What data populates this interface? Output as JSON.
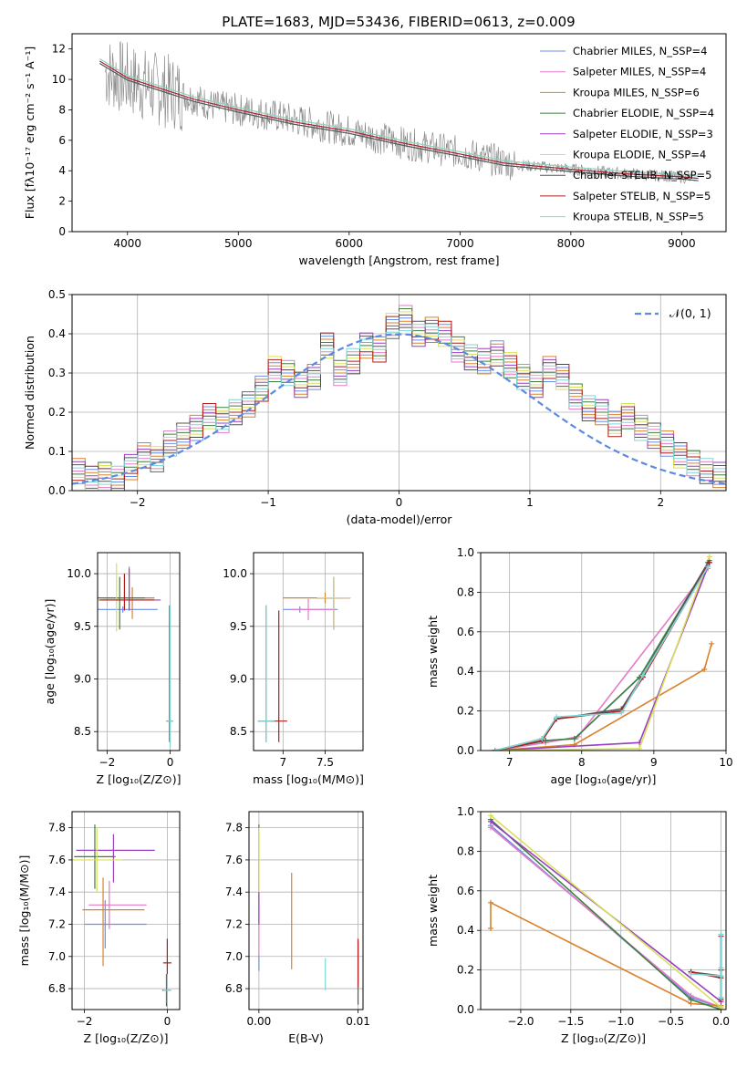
{
  "title": "PLATE=1683, MJD=53436, FIBERID=0613, z=0.009",
  "colors": [
    "#6b8ee8",
    "#e57ac8",
    "#d9822b",
    "#3f7f3f",
    "#9a3fc1",
    "#d8e05a",
    "#555555",
    "#b01c1c",
    "#7fd6d6"
  ],
  "chart_data": [
    {
      "id": "spectrum",
      "type": "line",
      "xlabel": "wavelength [Angstrom, rest frame]",
      "ylabel": "Flux [fλ10⁻¹⁷ erg cm⁻² s⁻¹ A⁻¹]",
      "xlim": [
        3500,
        9400
      ],
      "ylim": [
        0,
        13
      ],
      "xticks": [
        4000,
        5000,
        6000,
        7000,
        8000,
        9000
      ],
      "yticks": [
        0,
        2,
        4,
        6,
        8,
        10,
        12
      ],
      "grid": false,
      "legend_position": "top-right",
      "observed": {
        "color": "#808080",
        "x": [
          3800,
          4000,
          4200,
          4500,
          4800,
          5200,
          5600,
          6000,
          6500,
          7000,
          7500,
          8000,
          8500,
          9000,
          9100
        ],
        "y": [
          10.5,
          10.0,
          9.5,
          9.0,
          8.2,
          7.8,
          7.2,
          6.6,
          5.8,
          5.2,
          4.4,
          4.1,
          3.8,
          3.6,
          3.5
        ]
      },
      "model": {
        "x": [
          3750,
          4000,
          4300,
          4600,
          5000,
          5500,
          6000,
          6500,
          7000,
          7400,
          8000,
          8500,
          9000,
          9150
        ],
        "y": [
          11.2,
          10.1,
          9.4,
          8.7,
          8.0,
          7.2,
          6.6,
          5.8,
          5.1,
          4.5,
          4.1,
          3.8,
          3.6,
          3.5
        ]
      },
      "legend": [
        {
          "label": "Chabrier MILES, N_SSP=4",
          "color": "#6b8ee8"
        },
        {
          "label": "Salpeter MILES, N_SSP=4",
          "color": "#e57ac8"
        },
        {
          "label": "Kroupa MILES, N_SSP=6",
          "color": "#d9822b"
        },
        {
          "label": "Chabrier ELODIE, N_SSP=4",
          "color": "#3f7f3f"
        },
        {
          "label": "Salpeter ELODIE, N_SSP=3",
          "color": "#9a3fc1"
        },
        {
          "label": "Kroupa ELODIE, N_SSP=4",
          "color": "#d8e05a"
        },
        {
          "label": "Chabrier STELIB, N_SSP=5",
          "color": "#555555"
        },
        {
          "label": "Salpeter STELIB, N_SSP=5",
          "color": "#b01c1c"
        },
        {
          "label": "Kroupa STELIB, N_SSP=5",
          "color": "#7fd6d6"
        }
      ]
    },
    {
      "id": "residuals",
      "type": "line",
      "xlabel": "(data-model)/error",
      "ylabel": "Normed distribution",
      "xlim": [
        -2.5,
        2.5
      ],
      "ylim": [
        0,
        0.5
      ],
      "xticks": [
        -2,
        -1,
        0,
        1,
        2
      ],
      "yticks": [
        0.0,
        0.1,
        0.2,
        0.3,
        0.4,
        0.5
      ],
      "grid": true,
      "legend_position": "top-right",
      "reference_label": "𝒩(0, 1)",
      "reference_color": "#5b8ae0",
      "bin_width": 0.1,
      "hist_values": [
        0.05,
        0.03,
        0.04,
        0.03,
        0.06,
        0.09,
        0.08,
        0.12,
        0.14,
        0.16,
        0.19,
        0.18,
        0.2,
        0.22,
        0.26,
        0.31,
        0.3,
        0.27,
        0.29,
        0.37,
        0.3,
        0.33,
        0.37,
        0.36,
        0.42,
        0.44,
        0.4,
        0.41,
        0.4,
        0.36,
        0.34,
        0.33,
        0.35,
        0.32,
        0.29,
        0.27,
        0.31,
        0.29,
        0.24,
        0.21,
        0.2,
        0.17,
        0.19,
        0.16,
        0.14,
        0.12,
        0.09,
        0.07,
        0.05,
        0.04
      ]
    },
    {
      "id": "age_vs_Z",
      "type": "scatter",
      "xlabel": "Z [log₁₀(Z/Z⊙)]",
      "ylabel": "age  [log₁₀(age/yr)]",
      "xlim": [
        -2.3,
        0.3
      ],
      "ylim": [
        8.32,
        10.2
      ],
      "xticks": [
        -2,
        0
      ],
      "yticks": [
        8.5,
        9.0,
        9.5,
        10.0
      ],
      "grid": true,
      "points": [
        {
          "x": -1.5,
          "y": 9.66,
          "xerr": [
            0.8,
            1.1
          ],
          "yerr": [
            0.03,
            0.03
          ],
          "color": "#6b8ee8"
        },
        {
          "x": -1.3,
          "y": 9.77,
          "xerr": [
            0.9,
            0.8
          ],
          "yerr": [
            0.1,
            0.3
          ],
          "color": "#e57ac8"
        },
        {
          "x": -1.2,
          "y": 9.77,
          "xerr": [
            0.9,
            0.7
          ],
          "yerr": [
            0.2,
            0.1
          ],
          "color": "#d9822b"
        },
        {
          "x": -1.6,
          "y": 9.77,
          "xerr": [
            0.7,
            0.8
          ],
          "yerr": [
            0.3,
            0.2
          ],
          "color": "#3f7f3f"
        },
        {
          "x": -1.3,
          "y": 9.75,
          "xerr": [
            0.9,
            1.0
          ],
          "yerr": [
            0.1,
            0.3
          ],
          "color": "#9a3fc1"
        },
        {
          "x": -1.7,
          "y": 9.75,
          "xerr": [
            0.6,
            1.0
          ],
          "yerr": [
            0.3,
            0.35
          ],
          "color": "#d8e05a"
        },
        {
          "x": -0.02,
          "y": 8.6,
          "xerr": [
            0.1,
            0.1
          ],
          "yerr": [
            0.2,
            1.1
          ],
          "color": "#555555"
        },
        {
          "x": -1.45,
          "y": 9.75,
          "xerr": [
            0.8,
            0.95
          ],
          "yerr": [
            0.1,
            0.25
          ],
          "color": "#b01c1c"
        },
        {
          "x": 0.0,
          "y": 8.6,
          "xerr": [
            0.1,
            0.1
          ],
          "yerr": [
            0.25,
            1.1
          ],
          "color": "#7fd6d6"
        }
      ]
    },
    {
      "id": "age_vs_mass",
      "type": "scatter",
      "xlabel": "mass [log₁₀(M/M⊙)]",
      "ylabel": "",
      "xlim": [
        6.65,
        7.95
      ],
      "ylim": [
        8.32,
        10.2
      ],
      "xticks": [
        7.0,
        7.5
      ],
      "yticks": [
        8.5,
        9.0,
        9.5,
        10.0
      ],
      "grid": true,
      "points": [
        {
          "x": 7.2,
          "y": 9.66,
          "xerr": [
            0.2,
            0.45
          ],
          "yerr": [
            0.03,
            0.03
          ],
          "color": "#6b8ee8"
        },
        {
          "x": 7.3,
          "y": 9.66,
          "xerr": [
            0.2,
            0.3
          ],
          "yerr": [
            0.1,
            0.1
          ],
          "color": "#e57ac8"
        },
        {
          "x": 7.5,
          "y": 9.77,
          "xerr": [
            0.5,
            0.3
          ],
          "yerr": [
            0.05,
            0.05
          ],
          "color": "#d9822b"
        },
        {
          "x": 7.6,
          "y": 9.77,
          "xerr": [
            0.2,
            0.1
          ],
          "yerr": [
            0.3,
            0.2
          ],
          "color": "#3f7f3f"
        },
        {
          "x": 7.6,
          "y": 9.77,
          "xerr": [
            0.2,
            0.2
          ],
          "yerr": [
            0.3,
            0.2
          ],
          "color": "#9a3fc1"
        },
        {
          "x": 7.6,
          "y": 9.77,
          "xerr": [
            0.2,
            0.2
          ],
          "yerr": [
            0.3,
            0.2
          ],
          "color": "#d8e05a"
        },
        {
          "x": 6.8,
          "y": 8.6,
          "xerr": [
            0.1,
            0.1
          ],
          "yerr": [
            0.2,
            1.1
          ],
          "color": "#555555"
        },
        {
          "x": 6.95,
          "y": 8.6,
          "xerr": [
            0.1,
            0.1
          ],
          "yerr": [
            0.2,
            1.05
          ],
          "color": "#b01c1c"
        },
        {
          "x": 6.8,
          "y": 8.6,
          "xerr": [
            0.1,
            0.1
          ],
          "yerr": [
            0.2,
            1.1
          ],
          "color": "#7fd6d6"
        }
      ]
    },
    {
      "id": "massweight_vs_age",
      "type": "line",
      "xlabel": "age  [log₁₀(age/yr)]",
      "ylabel": "mass weight",
      "xlim": [
        6.6,
        10.0
      ],
      "ylim": [
        0,
        1.0
      ],
      "xticks": [
        7,
        8,
        9,
        10
      ],
      "yticks": [
        0.0,
        0.2,
        0.4,
        0.6,
        0.8,
        1.0
      ],
      "grid": true,
      "series": [
        {
          "color": "#6b8ee8",
          "x": [
            6.8,
            7.5,
            7.9,
            8.8,
            9.75
          ],
          "y": [
            0.0,
            0.05,
            0.06,
            0.37,
            0.93
          ]
        },
        {
          "color": "#e57ac8",
          "x": [
            6.8,
            7.5,
            7.95,
            9.75
          ],
          "y": [
            0.0,
            0.04,
            0.07,
            0.92
          ]
        },
        {
          "color": "#d9822b",
          "x": [
            6.8,
            7.9,
            9.7,
            9.8
          ],
          "y": [
            0.0,
            0.03,
            0.41,
            0.54
          ]
        },
        {
          "color": "#3f7f3f",
          "x": [
            6.8,
            7.5,
            7.9,
            8.8,
            9.77
          ],
          "y": [
            0.0,
            0.05,
            0.06,
            0.37,
            0.96
          ]
        },
        {
          "color": "#9a3fc1",
          "x": [
            6.8,
            8.8,
            9.77
          ],
          "y": [
            0.0,
            0.04,
            0.95
          ]
        },
        {
          "color": "#d8e05a",
          "x": [
            6.8,
            8.8,
            9.77
          ],
          "y": [
            0.0,
            0.01,
            0.98
          ]
        },
        {
          "color": "#555555",
          "x": [
            6.8,
            7.45,
            7.65,
            8.55,
            8.85,
            9.75
          ],
          "y": [
            0.0,
            0.06,
            0.16,
            0.21,
            0.38,
            0.95
          ]
        },
        {
          "color": "#b01c1c",
          "x": [
            6.8,
            7.45,
            7.65,
            8.55,
            8.85,
            9.77
          ],
          "y": [
            0.0,
            0.05,
            0.16,
            0.2,
            0.37,
            0.95
          ]
        },
        {
          "color": "#7fd6d6",
          "x": [
            6.8,
            7.45,
            7.65,
            8.55,
            8.85,
            9.75
          ],
          "y": [
            0.0,
            0.06,
            0.17,
            0.19,
            0.38,
            0.93
          ]
        }
      ]
    },
    {
      "id": "mass_vs_Z",
      "type": "scatter",
      "xlabel": "Z [log₁₀(Z/Z⊙)]",
      "ylabel": "mass [log₁₀(M/M⊙)]",
      "xlim": [
        -2.3,
        0.3
      ],
      "ylim": [
        6.67,
        7.9
      ],
      "xticks": [
        -2,
        0
      ],
      "yticks": [
        6.8,
        7.0,
        7.2,
        7.4,
        7.6,
        7.8
      ],
      "grid": true,
      "points": [
        {
          "x": -1.5,
          "y": 7.2,
          "xerr": [
            0.5,
            1.0
          ],
          "yerr": [
            0.15,
            0.15
          ],
          "color": "#6b8ee8"
        },
        {
          "x": -1.4,
          "y": 7.32,
          "xerr": [
            0.5,
            0.9
          ],
          "yerr": [
            0.15,
            0.15
          ],
          "color": "#e57ac8"
        },
        {
          "x": -1.55,
          "y": 7.29,
          "xerr": [
            0.5,
            1.0
          ],
          "yerr": [
            0.35,
            0.2
          ],
          "color": "#d9822b"
        },
        {
          "x": -1.75,
          "y": 7.62,
          "xerr": [
            0.5,
            0.5
          ],
          "yerr": [
            0.2,
            0.2
          ],
          "color": "#3f7f3f"
        },
        {
          "x": -1.3,
          "y": 7.66,
          "xerr": [
            0.9,
            1.0
          ],
          "yerr": [
            0.2,
            0.1
          ],
          "color": "#9a3fc1"
        },
        {
          "x": -1.7,
          "y": 7.6,
          "xerr": [
            0.6,
            0.6
          ],
          "yerr": [
            0.2,
            0.2
          ],
          "color": "#d8e05a"
        },
        {
          "x": -0.02,
          "y": 6.79,
          "xerr": [
            0.1,
            0.1
          ],
          "yerr": [
            0.1,
            0.1
          ],
          "color": "#555555"
        },
        {
          "x": 0.0,
          "y": 6.96,
          "xerr": [
            0.1,
            0.1
          ],
          "yerr": [
            0.1,
            0.15
          ],
          "color": "#b01c1c"
        },
        {
          "x": 0.0,
          "y": 6.79,
          "xerr": [
            0.1,
            0.1
          ],
          "yerr": [
            0.08,
            0.1
          ],
          "color": "#7fd6d6"
        }
      ]
    },
    {
      "id": "mass_vs_EBV",
      "type": "scatter",
      "xlabel": "E(B-V)",
      "ylabel": "",
      "xlim": [
        -0.001,
        0.0105
      ],
      "ylim": [
        6.67,
        7.9
      ],
      "xticks": [
        0.0,
        0.01
      ],
      "tick_labels": [
        "0.00",
        "0.01"
      ],
      "yticks": [
        6.8,
        7.0,
        7.2,
        7.4,
        7.6,
        7.8
      ],
      "grid": true,
      "points": [
        {
          "x": 0.0,
          "y": 6.96,
          "yerr": [
            0.05,
            0.05
          ],
          "color": "#6b8ee8"
        },
        {
          "x": 0.0,
          "y": 7.2,
          "yerr": [
            0.2,
            0.2
          ],
          "color": "#e57ac8"
        },
        {
          "x": 0.0033,
          "y": 7.22,
          "yerr": [
            0.3,
            0.3
          ],
          "color": "#d9822b"
        },
        {
          "x": 0.0,
          "y": 7.62,
          "yerr": [
            0.2,
            0.2
          ],
          "color": "#3f7f3f"
        },
        {
          "x": 0.0,
          "y": 7.4,
          "yerr": [
            0.2,
            0.2
          ],
          "color": "#9a3fc1"
        },
        {
          "x": 0.0,
          "y": 7.6,
          "yerr": [
            0.2,
            0.2
          ],
          "color": "#d8e05a"
        },
        {
          "x": 0.01,
          "y": 6.9,
          "yerr": [
            0.2,
            0.2
          ],
          "color": "#555555"
        },
        {
          "x": 0.01,
          "y": 6.96,
          "yerr": [
            0.15,
            0.15
          ],
          "color": "#b01c1c"
        },
        {
          "x": 0.0067,
          "y": 6.89,
          "yerr": [
            0.1,
            0.1
          ],
          "color": "#7fd6d6"
        }
      ]
    },
    {
      "id": "massweight_vs_Z",
      "type": "line",
      "xlabel": "Z [log₁₀(Z/Z⊙)]",
      "ylabel": "mass weight",
      "xlim": [
        -2.4,
        0.05
      ],
      "ylim": [
        0,
        1.0
      ],
      "xticks": [
        -2.0,
        -1.5,
        -1.0,
        -0.5,
        0.0
      ],
      "tick_labels": [
        "−2.0",
        "−1.5",
        "−1.0",
        "−0.5",
        "0.0"
      ],
      "yticks": [
        0.0,
        0.2,
        0.4,
        0.6,
        0.8,
        1.0
      ],
      "grid": true,
      "series": [
        {
          "color": "#6b8ee8",
          "x": [
            -2.3,
            -0.3,
            0.0
          ],
          "y": [
            0.93,
            0.06,
            0.01
          ]
        },
        {
          "color": "#e57ac8",
          "x": [
            -2.3,
            -0.3,
            0.0
          ],
          "y": [
            0.92,
            0.07,
            0.01
          ]
        },
        {
          "color": "#d9822b",
          "x": [
            -2.3,
            -2.3,
            -0.3,
            0.0
          ],
          "y": [
            0.41,
            0.54,
            0.03,
            0.02
          ]
        },
        {
          "color": "#3f7f3f",
          "x": [
            -2.3,
            -0.3,
            0.0
          ],
          "y": [
            0.96,
            0.05,
            0.0
          ]
        },
        {
          "color": "#9a3fc1",
          "x": [
            -2.3,
            0.0
          ],
          "y": [
            0.95,
            0.04
          ]
        },
        {
          "color": "#d8e05a",
          "x": [
            -2.3,
            0.0
          ],
          "y": [
            0.98,
            0.01
          ]
        },
        {
          "color": "#555555",
          "x": [
            -0.3,
            0.0,
            0.0,
            0.0,
            0.0
          ],
          "y": [
            0.19,
            0.17,
            0.38,
            0.21,
            0.06
          ]
        },
        {
          "color": "#b01c1c",
          "x": [
            -0.3,
            0.0,
            0.0,
            0.0,
            0.0
          ],
          "y": [
            0.19,
            0.16,
            0.37,
            0.2,
            0.05
          ]
        },
        {
          "color": "#7fd6d6",
          "x": [
            -0.3,
            0.0,
            0.0,
            0.0,
            0.0
          ],
          "y": [
            0.18,
            0.17,
            0.38,
            0.21,
            0.06
          ]
        }
      ]
    }
  ]
}
